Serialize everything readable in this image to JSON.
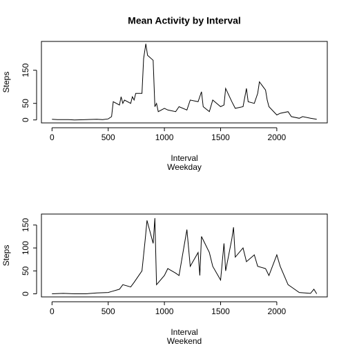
{
  "chart_data": [
    {
      "type": "line",
      "title": "Mean Activity by Interval",
      "xlabel": "Interval",
      "subtitle": "Weekday",
      "ylabel": "Steps",
      "color": "#000000",
      "x": [
        0,
        50,
        100,
        150,
        200,
        300,
        400,
        450,
        500,
        530,
        545,
        600,
        615,
        630,
        645,
        700,
        715,
        730,
        745,
        800,
        815,
        835,
        850,
        900,
        915,
        930,
        945,
        1000,
        1030,
        1100,
        1130,
        1200,
        1230,
        1300,
        1330,
        1345,
        1400,
        1430,
        1500,
        1530,
        1545,
        1600,
        1630,
        1700,
        1730,
        1745,
        1800,
        1830,
        1845,
        1900,
        1915,
        1930,
        2000,
        2030,
        2100,
        2130,
        2200,
        2230,
        2300,
        2355
      ],
      "values": [
        2,
        1,
        1,
        1,
        0,
        1,
        2,
        1,
        3,
        10,
        55,
        45,
        70,
        50,
        60,
        50,
        70,
        60,
        80,
        80,
        185,
        230,
        195,
        180,
        40,
        50,
        25,
        35,
        30,
        25,
        40,
        30,
        60,
        55,
        85,
        40,
        25,
        60,
        40,
        45,
        95,
        55,
        35,
        40,
        95,
        55,
        50,
        80,
        115,
        90,
        60,
        40,
        15,
        20,
        25,
        10,
        5,
        10,
        5,
        2
      ],
      "xlim": [
        -94.2,
        2449.2
      ],
      "ylim": [
        -9,
        237
      ],
      "xticks": [
        0,
        500,
        1000,
        1500,
        2000
      ],
      "yticks": [
        0,
        50,
        150
      ]
    },
    {
      "type": "line",
      "xlabel": "Interval",
      "subtitle": "Weekend",
      "ylabel": "Steps",
      "color": "#000000",
      "x": [
        0,
        100,
        200,
        300,
        400,
        500,
        530,
        600,
        630,
        700,
        730,
        800,
        830,
        845,
        900,
        915,
        930,
        1000,
        1030,
        1100,
        1130,
        1200,
        1230,
        1300,
        1315,
        1330,
        1400,
        1430,
        1500,
        1530,
        1545,
        1600,
        1615,
        1630,
        1700,
        1730,
        1800,
        1830,
        1900,
        1930,
        2000,
        2030,
        2100,
        2130,
        2200,
        2300,
        2330,
        2355
      ],
      "values": [
        0,
        1,
        0,
        0,
        2,
        3,
        5,
        10,
        20,
        15,
        25,
        50,
        120,
        160,
        110,
        165,
        20,
        40,
        55,
        45,
        40,
        140,
        60,
        90,
        40,
        125,
        90,
        60,
        30,
        110,
        50,
        120,
        145,
        80,
        100,
        70,
        85,
        60,
        55,
        40,
        85,
        60,
        20,
        15,
        3,
        1,
        10,
        0
      ],
      "xlim": [
        -94.2,
        2449.2
      ],
      "ylim": [
        -6.7,
        173.9
      ],
      "xticks": [
        0,
        500,
        1000,
        1500,
        2000
      ],
      "yticks": [
        0,
        50,
        100,
        150
      ]
    }
  ]
}
